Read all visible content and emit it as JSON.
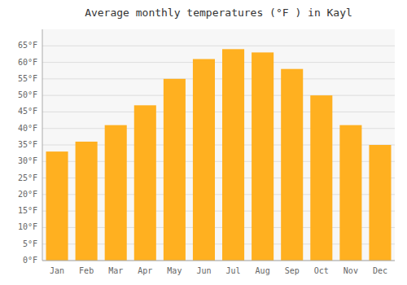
{
  "chart_data": {
    "type": "bar",
    "title": "Average monthly temperatures (°F ) in Kayl",
    "categories": [
      "Jan",
      "Feb",
      "Mar",
      "Apr",
      "May",
      "Jun",
      "Jul",
      "Aug",
      "Sep",
      "Oct",
      "Nov",
      "Dec"
    ],
    "values": [
      33,
      36,
      41,
      47,
      55,
      61,
      64,
      63,
      58,
      50,
      41,
      35
    ],
    "color": "#FFB020",
    "ylim": [
      0,
      70
    ],
    "yticks": [
      {
        "value": 0,
        "label": "0°F"
      },
      {
        "value": 5,
        "label": "5°F"
      },
      {
        "value": 10,
        "label": "10°F"
      },
      {
        "value": 15,
        "label": "15°F"
      },
      {
        "value": 20,
        "label": "20°F"
      },
      {
        "value": 25,
        "label": "25°F"
      },
      {
        "value": 30,
        "label": "30°F"
      },
      {
        "value": 35,
        "label": "35°F"
      },
      {
        "value": 40,
        "label": "40°F"
      },
      {
        "value": 45,
        "label": "45°F"
      },
      {
        "value": 50,
        "label": "50°F"
      },
      {
        "value": 55,
        "label": "55°F"
      },
      {
        "value": 60,
        "label": "60°F"
      },
      {
        "value": 65,
        "label": "65°F"
      }
    ],
    "grid": true
  }
}
